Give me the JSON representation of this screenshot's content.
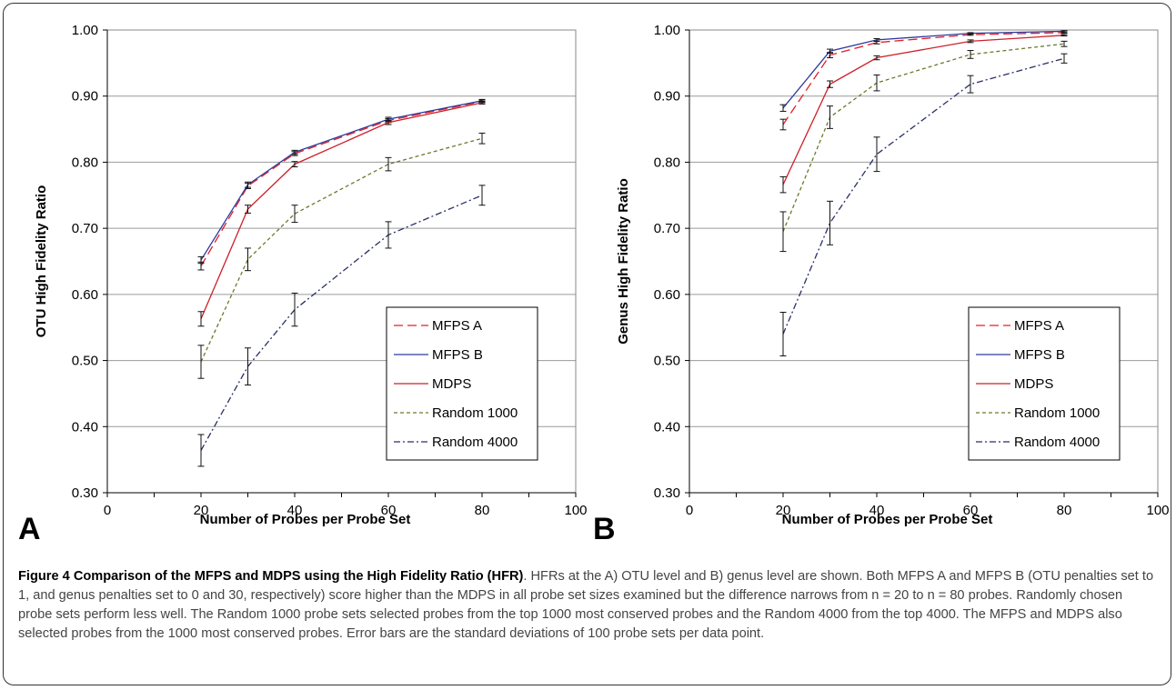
{
  "chart_data": [
    {
      "type": "line",
      "panel_label": "A",
      "xlabel": "Number of Probes per Probe Set",
      "ylabel": "OTU High Fidelity Ratio",
      "xlim": [
        0,
        100
      ],
      "ylim": [
        0.3,
        1.0
      ],
      "xticks": [
        0,
        20,
        40,
        60,
        80,
        100
      ],
      "yticks": [
        0.3,
        0.4,
        0.5,
        0.6,
        0.7,
        0.8,
        0.9,
        1.0
      ],
      "x_minor_step": 10,
      "grid": "horizontal",
      "legend_position": "bottom-right",
      "x": [
        20,
        30,
        40,
        60,
        80
      ],
      "series": [
        {
          "name": "MFPS A",
          "color": "#e0202a",
          "dash": "10,5",
          "values": [
            0.643,
            0.764,
            0.813,
            0.863,
            0.892
          ],
          "err": [
            0.006,
            0.004,
            0.003,
            0.003,
            0.002
          ]
        },
        {
          "name": "MFPS B",
          "color": "#2e3a9a",
          "dash": "",
          "values": [
            0.652,
            0.766,
            0.815,
            0.865,
            0.893
          ],
          "err": [
            0.005,
            0.004,
            0.003,
            0.003,
            0.002
          ]
        },
        {
          "name": "MDPS",
          "color": "#cc2229",
          "dash": "",
          "values": [
            0.563,
            0.729,
            0.797,
            0.86,
            0.89
          ],
          "err": [
            0.011,
            0.006,
            0.004,
            0.003,
            0.002
          ]
        },
        {
          "name": "Random 1000",
          "color": "#6b7a2a",
          "dash": "4,3",
          "values": [
            0.498,
            0.653,
            0.722,
            0.797,
            0.836
          ],
          "err": [
            0.025,
            0.017,
            0.013,
            0.01,
            0.008
          ]
        },
        {
          "name": "Random 4000",
          "color": "#2b2f66",
          "dash": "7,3,2,3",
          "values": [
            0.364,
            0.491,
            0.577,
            0.69,
            0.75
          ],
          "err": [
            0.024,
            0.028,
            0.025,
            0.02,
            0.015
          ]
        }
      ]
    },
    {
      "type": "line",
      "panel_label": "B",
      "xlabel": "Number of Probes per Probe Set",
      "ylabel": "Genus High Fidelity Ratio",
      "xlim": [
        0,
        100
      ],
      "ylim": [
        0.3,
        1.0
      ],
      "xticks": [
        0,
        20,
        40,
        60,
        80,
        100
      ],
      "yticks": [
        0.3,
        0.4,
        0.5,
        0.6,
        0.7,
        0.8,
        0.9,
        1.0
      ],
      "x_minor_step": 10,
      "grid": "horizontal",
      "legend_position": "bottom-right",
      "x": [
        20,
        30,
        40,
        60,
        80
      ],
      "series": [
        {
          "name": "MFPS A",
          "color": "#e0202a",
          "dash": "10,5",
          "values": [
            0.857,
            0.962,
            0.981,
            0.993,
            0.996
          ],
          "err": [
            0.008,
            0.004,
            0.002,
            0.001,
            0.001
          ]
        },
        {
          "name": "MFPS B",
          "color": "#2e3a9a",
          "dash": "",
          "values": [
            0.882,
            0.968,
            0.985,
            0.995,
            0.998
          ],
          "err": [
            0.005,
            0.003,
            0.002,
            0.001,
            0.001
          ]
        },
        {
          "name": "MDPS",
          "color": "#cc2229",
          "dash": "",
          "values": [
            0.766,
            0.918,
            0.958,
            0.983,
            0.992
          ],
          "err": [
            0.012,
            0.005,
            0.003,
            0.002,
            0.001
          ]
        },
        {
          "name": "Random 1000",
          "color": "#6b7a2a",
          "dash": "4,3",
          "values": [
            0.695,
            0.868,
            0.92,
            0.963,
            0.979
          ],
          "err": [
            0.03,
            0.017,
            0.012,
            0.006,
            0.004
          ]
        },
        {
          "name": "Random 4000",
          "color": "#2b2f66",
          "dash": "7,3,2,3",
          "values": [
            0.54,
            0.708,
            0.812,
            0.918,
            0.957
          ],
          "err": [
            0.033,
            0.033,
            0.026,
            0.013,
            0.007
          ]
        }
      ]
    }
  ],
  "caption": {
    "title": "Figure 4 Comparison of the MFPS and MDPS using the High Fidelity Ratio (HFR)",
    "body": ". HFRs at the A) OTU level and B) genus level are shown. Both MFPS A and MFPS B (OTU penalties set to 1, and genus penalties set to 0 and 30, respectively) score higher than the MDPS in all probe set sizes examined but the difference narrows from n = 20 to n = 80 probes. Randomly chosen probe sets perform less well. The Random 1000 probe sets selected probes from the top 1000 most conserved probes and the Random 4000 from the top 4000. The MFPS and MDPS also selected probes from the 1000 most conserved probes. Error bars are the standard deviations of 100 probe sets per data point."
  }
}
